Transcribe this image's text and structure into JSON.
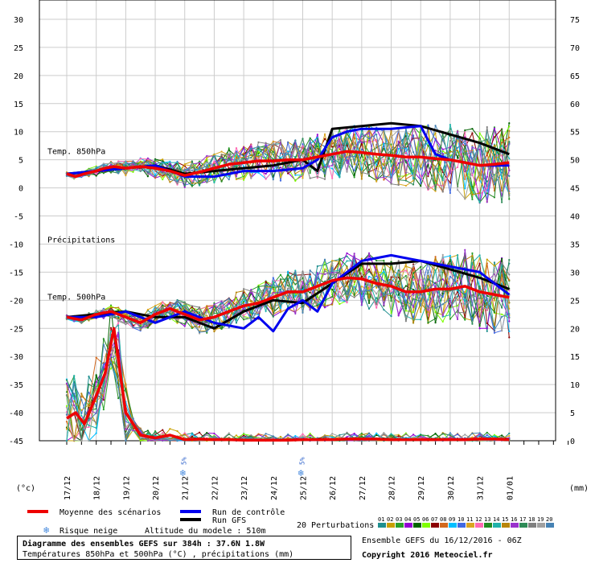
{
  "chart_data": {
    "type": "line",
    "left_axis": {
      "unit": "(°c)",
      "range": [
        -45,
        30
      ],
      "ticks": [
        "30",
        "25",
        "20",
        "15",
        "10",
        "5",
        "0",
        "-5",
        "-10",
        "-15",
        "-20",
        "-25",
        "-30",
        "-35",
        "-40",
        "-45"
      ]
    },
    "right_axis": {
      "unit": "(mm)",
      "range": [
        0,
        75
      ],
      "ticks": [
        "75",
        "70",
        "65",
        "60",
        "55",
        "50",
        "45",
        "40",
        "35",
        "30",
        "25",
        "20",
        "15",
        "10",
        "5",
        "0"
      ]
    },
    "x_ticks": [
      "17/12",
      "18/12",
      "19/12",
      "20/12",
      "21/12",
      "22/12",
      "23/12",
      "24/12",
      "25/12",
      "26/12",
      "27/12",
      "28/12",
      "29/12",
      "30/12",
      "31/12",
      "01/01"
    ],
    "annotations": {
      "t850": "Temp. 850hPa",
      "precip": "Précipitations",
      "t500": "Temp. 500hPa",
      "snow_pct": "5%"
    },
    "snow_risk_ticks": [
      "21/12",
      "25/12"
    ],
    "series": [
      {
        "name": "Moyenne des scénarios",
        "color": "#ee0000",
        "width": 3.5,
        "t850": [
          [
            0,
            2.5
          ],
          [
            0.3,
            2
          ],
          [
            0.6,
            2.5
          ],
          [
            1,
            3
          ],
          [
            1.3,
            3.5
          ],
          [
            1.6,
            3.8
          ],
          [
            2,
            3.5
          ],
          [
            2.5,
            3.8
          ],
          [
            3,
            3.5
          ],
          [
            3.5,
            3
          ],
          [
            4,
            2.2
          ],
          [
            4.5,
            2.8
          ],
          [
            5,
            3.5
          ],
          [
            5.5,
            4.2
          ],
          [
            6,
            4.5
          ],
          [
            6.5,
            4.8
          ],
          [
            7,
            4.8
          ],
          [
            7.5,
            5
          ],
          [
            8,
            5
          ],
          [
            8.5,
            5.5
          ],
          [
            9,
            6
          ],
          [
            9.5,
            6.5
          ],
          [
            10,
            6.3
          ],
          [
            10.5,
            6
          ],
          [
            11,
            5.8
          ],
          [
            11.5,
            5.5
          ],
          [
            12,
            5.5
          ],
          [
            12.5,
            5.2
          ],
          [
            13,
            5
          ],
          [
            13.5,
            4.5
          ],
          [
            14,
            4
          ],
          [
            14.5,
            4.2
          ],
          [
            15,
            4.5
          ]
        ],
        "t500": [
          [
            0,
            -23
          ],
          [
            0.5,
            -23.5
          ],
          [
            1,
            -22.5
          ],
          [
            1.5,
            -22
          ],
          [
            2,
            -23
          ],
          [
            2.5,
            -24
          ],
          [
            3,
            -22.5
          ],
          [
            3.5,
            -21.5
          ],
          [
            4,
            -22.5
          ],
          [
            4.5,
            -23.5
          ],
          [
            5,
            -23
          ],
          [
            5.5,
            -22
          ],
          [
            6,
            -21
          ],
          [
            6.5,
            -20.5
          ],
          [
            7,
            -19.5
          ],
          [
            7.5,
            -18.5
          ],
          [
            8,
            -18.5
          ],
          [
            8.5,
            -17.5
          ],
          [
            9,
            -16.5
          ],
          [
            9.5,
            -16
          ],
          [
            10,
            -16.2
          ],
          [
            10.5,
            -17
          ],
          [
            11,
            -17.5
          ],
          [
            11.5,
            -18.5
          ],
          [
            12,
            -18.5
          ],
          [
            12.5,
            -18
          ],
          [
            13,
            -18
          ],
          [
            13.5,
            -17.5
          ],
          [
            14,
            -18.5
          ],
          [
            14.5,
            -19
          ],
          [
            15,
            -19.5
          ]
        ],
        "precip": [
          [
            0,
            4
          ],
          [
            0.3,
            5
          ],
          [
            0.6,
            3
          ],
          [
            1,
            8
          ],
          [
            1.3,
            12
          ],
          [
            1.6,
            20
          ],
          [
            2,
            5
          ],
          [
            2.5,
            1
          ],
          [
            3,
            0.5
          ],
          [
            3.5,
            1
          ],
          [
            4,
            0.2
          ],
          [
            4.5,
            0.3
          ],
          [
            5,
            0.2
          ],
          [
            5.5,
            0.2
          ],
          [
            6,
            0.1
          ],
          [
            6.5,
            0.1
          ],
          [
            7,
            0.1
          ],
          [
            7.5,
            0.1
          ],
          [
            8,
            0.2
          ],
          [
            8.5,
            0.2
          ],
          [
            9,
            0.2
          ],
          [
            9.5,
            0.3
          ],
          [
            10,
            0.3
          ],
          [
            10.5,
            0.3
          ],
          [
            11,
            0.2
          ],
          [
            11.5,
            0.2
          ],
          [
            12,
            0.2
          ],
          [
            12.5,
            0.2
          ],
          [
            13,
            0.2
          ],
          [
            13.5,
            0.2
          ],
          [
            14,
            0.3
          ],
          [
            14.5,
            0.3
          ],
          [
            15,
            0.2
          ]
        ]
      },
      {
        "name": "Run de contrôle",
        "color": "#0000ee",
        "width": 3,
        "t850": [
          [
            0,
            2.5
          ],
          [
            1,
            3
          ],
          [
            2,
            3.5
          ],
          [
            3,
            4
          ],
          [
            4,
            2
          ],
          [
            5,
            2
          ],
          [
            6,
            3
          ],
          [
            7,
            3
          ],
          [
            8,
            3.5
          ],
          [
            8.5,
            5
          ],
          [
            9,
            9
          ],
          [
            9.5,
            10
          ],
          [
            10,
            10.5
          ],
          [
            11,
            10.5
          ],
          [
            12,
            11
          ],
          [
            12.5,
            6
          ],
          [
            13,
            5
          ],
          [
            14,
            4
          ],
          [
            15,
            4
          ]
        ],
        "t500": [
          [
            0,
            -23
          ],
          [
            1,
            -23
          ],
          [
            2,
            -22
          ],
          [
            3,
            -24
          ],
          [
            4,
            -22
          ],
          [
            5,
            -24
          ],
          [
            6,
            -25
          ],
          [
            6.5,
            -23
          ],
          [
            7,
            -25.5
          ],
          [
            7.5,
            -21.5
          ],
          [
            8,
            -20
          ],
          [
            8.5,
            -22
          ],
          [
            9,
            -17
          ],
          [
            9.5,
            -15
          ],
          [
            10,
            -13
          ],
          [
            11,
            -12
          ],
          [
            12,
            -13
          ],
          [
            13,
            -14
          ],
          [
            14,
            -15
          ],
          [
            15,
            -19
          ]
        ]
      },
      {
        "name": "Run GFS",
        "color": "#000000",
        "width": 3,
        "t850": [
          [
            0,
            2.5
          ],
          [
            1,
            3
          ],
          [
            2,
            3.5
          ],
          [
            3,
            4
          ],
          [
            4,
            2.5
          ],
          [
            5,
            3
          ],
          [
            6,
            3.5
          ],
          [
            7,
            4
          ],
          [
            8,
            5
          ],
          [
            8.5,
            3
          ],
          [
            9,
            10.5
          ],
          [
            10,
            11
          ],
          [
            11,
            11.5
          ],
          [
            12,
            11
          ],
          [
            13,
            9.5
          ],
          [
            14,
            8
          ],
          [
            15,
            6
          ]
        ],
        "t500": [
          [
            0,
            -23
          ],
          [
            1,
            -22.5
          ],
          [
            2,
            -22
          ],
          [
            3,
            -23
          ],
          [
            4,
            -23
          ],
          [
            5,
            -25
          ],
          [
            6,
            -22
          ],
          [
            7,
            -20
          ],
          [
            8,
            -20.5
          ],
          [
            9,
            -17
          ],
          [
            10,
            -13.5
          ],
          [
            11,
            -13.5
          ],
          [
            12,
            -13
          ],
          [
            13,
            -14.5
          ],
          [
            14,
            -16
          ],
          [
            15,
            -18
          ]
        ]
      }
    ],
    "perturbation_count": 20,
    "perturbation_colors": [
      "#1f8f8f",
      "#c8a000",
      "#2aa02a",
      "#9400d3",
      "#006400",
      "#7fff00",
      "#8b0000",
      "#d2691e",
      "#00bfff",
      "#4169e1",
      "#daa520",
      "#ff69b4",
      "#228b22",
      "#20b2aa",
      "#b8860b",
      "#9932cc",
      "#2e8b57",
      "#808080",
      "#a0a0a0",
      "#4682b4"
    ]
  },
  "legend": {
    "mean": "Moyenne des scénarios",
    "control": "Run de contrôle",
    "gfs": "Run GFS",
    "snow": "Risque neige",
    "altitude": "Altitude du modele : 510m",
    "perturbations": "20 Perturbations",
    "pert_numbers": [
      "01",
      "02",
      "03",
      "04",
      "05",
      "06",
      "07",
      "08",
      "09",
      "10",
      "11",
      "12",
      "13",
      "14",
      "15",
      "16",
      "17",
      "18",
      "19",
      "20"
    ]
  },
  "footer": {
    "title": "Diagramme des ensembles GEFS sur 384h : 37.6N 1.8W",
    "subtitle": "Températures 850hPa et 500hPa (°C) , précipitations (mm)",
    "ensemble": "Ensemble GEFS du 16/12/2016 - 06Z",
    "copyright": "Copyright 2016 Meteociel.fr"
  }
}
